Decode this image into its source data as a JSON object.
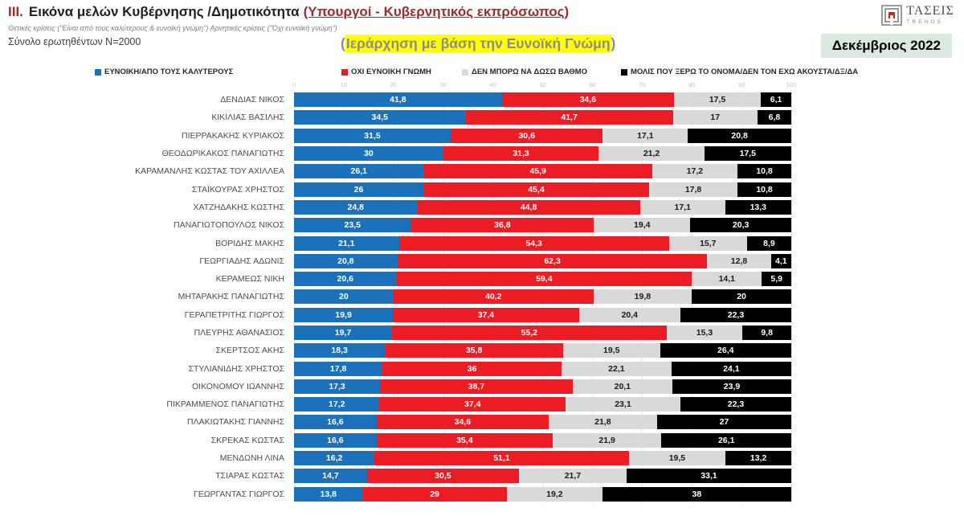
{
  "header": {
    "section_number": "III.",
    "title": "Εικόνα μελών Κυβέρνησης /Δημοτικότητα",
    "title_annotation": "(Υπουργοί - Κυβερνητικός εκπρόσωπος)",
    "subtitle": "Θετικές κρίσεις (\"Είναι από τους καλύτερους & ευνοϊκή γνώμη\")  Αρνητικές κρίσεις (\"Όχι ευνοϊκή γνώμη\")",
    "sample_note": "Σύνολο ερωτηθέντων Ν=2000",
    "highlight_prefix": "(",
    "highlight_text": "Ιεράρχηση με βάση την Ευνοϊκή Γνώμη",
    "highlight_suffix": ")",
    "date_badge": "Δεκέμβριος 2022",
    "logo_title": "ΤΑΣΕΙΣ",
    "logo_subtitle": "TRENDS"
  },
  "colors": {
    "title_accent": "#9e2b2e",
    "highlight_bg": "#ffff00",
    "date_badge_bg": "#d9e9de",
    "gridline": "#e9e9e9"
  },
  "chart_data": {
    "type": "bar",
    "orientation": "horizontal",
    "stacked": true,
    "title": "Εικόνα μελών Κυβέρνησης /Δημοτικότητα (Ιεράρχηση με βάση την Ευνοϊκή Γνώμη)",
    "xlabel": "",
    "ylabel": "",
    "xlim": [
      0,
      100
    ],
    "x_ticks": [
      0,
      10,
      20,
      30,
      40,
      50,
      60,
      70,
      80,
      90,
      100
    ],
    "grid": true,
    "legend_position": "top",
    "decimal_separator": ",",
    "categories": [
      "ΔΕΝΔΙΑΣ ΝΙΚΟΣ",
      "ΚΙΚΙΛΙΑΣ ΒΑΣΙΛΗΣ",
      "ΠΙΕΡΡΑΚΑΚΗΣ ΚΥΡΙΑΚΟΣ",
      "ΘΕΟΔΩΡΙΚΑΚΟΣ ΠΑΝΑΓΙΩΤΗΣ",
      "ΚΑΡΑΜΑΝΛΗΣ ΚΩΣΤΑΣ ΤΟΥ ΑΧΙΛΛΕΑ",
      "ΣΤΑΪΚΟΥΡΑΣ ΧΡΗΣΤΟΣ",
      "ΧΑΤΖΗΔΑΚΗΣ ΚΩΣΤΗΣ",
      "ΠΑΝΑΓΙΩΤΟΠΟΥΛΟΣ ΝΙΚΟΣ",
      "ΒΟΡΙΔΗΣ ΜΑΚΗΣ",
      "ΓΕΩΡΓΙΑΔΗΣ ΑΔΩΝΙΣ",
      "ΚΕΡΑΜΕΩΣ ΝΙΚΗ",
      "ΜΗΤΑΡΑΚΗΣ ΠΑΝΑΓΙΩΤΗΣ",
      "ΓΕΡΑΠΕΤΡΙΤΗΣ ΓΙΩΡΓΟΣ",
      "ΠΛΕΥΡΗΣ ΑΘΑΝΑΣΙΟΣ",
      "ΣΚΕΡΤΣΟΣ ΑΚΗΣ",
      "ΣΤΥΛΙΑΝΙΔΗΣ ΧΡΗΣΤΟΣ",
      "ΟΙΚΟΝΟΜΟΥ ΙΩΑΝΝΗΣ",
      "ΠΙΚΡΑΜΜΕΝΟΣ ΠΑΝΑΓΙΩΤΗΣ",
      "ΠΛΑΚΙΩΤΑΚΗΣ ΓΙΑΝΝΗΣ",
      "ΣΚΡΕΚΑΣ ΚΩΣΤΑΣ",
      "ΜΕΝΔΩΝΗ ΛΙΝΑ",
      "ΤΣΙΑΡΑΣ ΚΩΣΤΑΣ",
      "ΓΕΩΡΓΑΝΤΑΣ ΓΙΩΡΓΟΣ"
    ],
    "series": [
      {
        "name": "ΕΥΝΟΙΚΗ/ΑΠΟ ΤΟΥΣ ΚΑΛΥΤΕΡΟΥΣ",
        "color": "#1b72ba",
        "label_color": "#ffffff",
        "key": "favorable",
        "values": [
          41.8,
          34.5,
          31.5,
          30,
          26.1,
          26,
          24.8,
          23.5,
          21.1,
          20.8,
          20.6,
          20,
          19.9,
          19.7,
          18.3,
          17.8,
          17.3,
          17.2,
          16.6,
          16.6,
          16.2,
          14.7,
          13.8
        ]
      },
      {
        "name": "ΟΧΙ ΕΥΝΟΙΚΗ ΓΝΩΜΗ",
        "color": "#eb1c24",
        "label_color": "#ffffff",
        "key": "unfavorable",
        "values": [
          34.6,
          41.7,
          30.6,
          31.3,
          45.9,
          45.4,
          44.8,
          36.8,
          54.3,
          62.3,
          59.4,
          40.2,
          37.4,
          55.2,
          35.8,
          36,
          38.7,
          37.4,
          34.6,
          35.4,
          51.1,
          30.5,
          29
        ]
      },
      {
        "name": "ΔΕΝ ΜΠΟΡΩ ΝΑ ΔΩΣΩ ΒΑΘΜΟ",
        "color": "#d9d9d9",
        "label_color": "#1a1a1a",
        "key": "cannot-rate",
        "values": [
          17.5,
          17,
          17.1,
          21.2,
          17.2,
          17.8,
          17.1,
          19.4,
          15.7,
          12.8,
          14.1,
          19.8,
          20.4,
          15.3,
          19.5,
          22.1,
          20.1,
          23.1,
          21.8,
          21.9,
          19.5,
          21.7,
          19.2
        ]
      },
      {
        "name": "ΜΟΛΙΣ ΠΟΥ ΞΕΡΩ ΤΟ ΟΝΟΜΑ/ΔΕΝ ΤΟΝ ΕΧΩ ΑΚΟΥΣΤΑ/ΔΞ/ΔΑ",
        "color": "#000000",
        "label_color": "#ffffff",
        "key": "barely-know",
        "values": [
          6.1,
          6.8,
          20.8,
          17.5,
          10.8,
          10.8,
          13.3,
          20.3,
          8.9,
          4.1,
          5.9,
          20,
          22.3,
          9.8,
          26.4,
          24.1,
          23.9,
          22.3,
          27,
          26.1,
          13.2,
          33.1,
          38
        ]
      }
    ]
  }
}
